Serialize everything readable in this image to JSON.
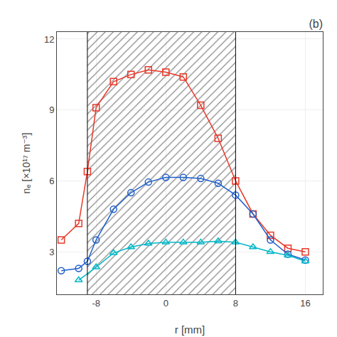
{
  "chart_data": {
    "type": "line",
    "title": "(b)",
    "x_label": "r [mm]",
    "y_label": "nₑ [×10¹⁷ m⁻³]",
    "xlim": [
      -12.5,
      18
    ],
    "ylim": [
      1.2,
      12.3
    ],
    "xticks": [
      -8,
      0,
      8,
      16
    ],
    "yticks": [
      3,
      6,
      9,
      12
    ],
    "grid": true,
    "span": [
      -9,
      8
    ],
    "series": [
      {
        "color": "#e8392a",
        "marker": "square",
        "x": [
          -12,
          -10,
          -9,
          -8,
          -6,
          -4,
          -2,
          0,
          2,
          4,
          6,
          8,
          10,
          12,
          14,
          16
        ],
        "values": [
          3.5,
          4.2,
          6.4,
          9.1,
          10.2,
          10.5,
          10.7,
          10.6,
          10.4,
          9.2,
          7.8,
          6.0,
          4.6,
          3.7,
          3.15,
          3.0
        ]
      },
      {
        "color": "#2060cc",
        "marker": "circle",
        "x": [
          -12,
          -10,
          -9,
          -8,
          -6,
          -4,
          -2,
          0,
          2,
          4,
          6,
          8,
          10,
          12,
          14,
          16
        ],
        "values": [
          2.2,
          2.3,
          2.6,
          3.5,
          4.8,
          5.5,
          5.95,
          6.15,
          6.15,
          6.1,
          5.9,
          5.4,
          4.6,
          3.5,
          2.9,
          2.65
        ]
      },
      {
        "color": "#00b8c8",
        "marker": "triangle",
        "x": [
          -10,
          -8,
          -6,
          -4,
          -2,
          0,
          2,
          4,
          6,
          8,
          10,
          12,
          14,
          16
        ],
        "values": [
          1.8,
          2.35,
          2.95,
          3.2,
          3.35,
          3.4,
          3.4,
          3.4,
          3.45,
          3.4,
          3.2,
          3.0,
          2.85,
          2.6
        ]
      }
    ]
  }
}
